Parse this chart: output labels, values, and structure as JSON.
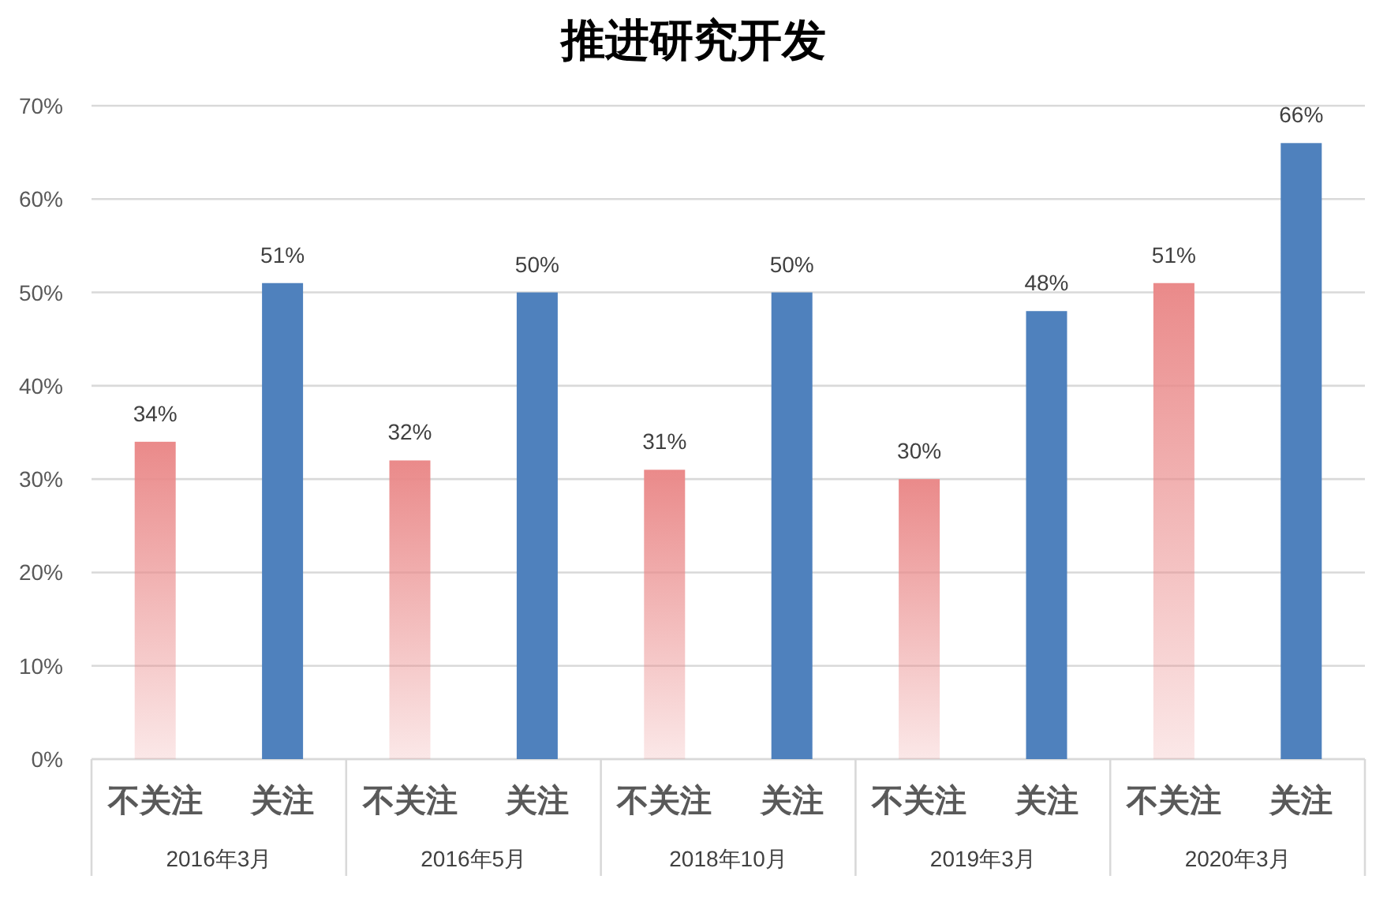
{
  "chart_data": {
    "type": "bar",
    "title": "推进研究开发",
    "categories": [
      "2016年3月",
      "2016年5月",
      "2018年10月",
      "2019年3月",
      "2020年3月"
    ],
    "series": [
      {
        "name": "不关注",
        "color": "#ea8a8a",
        "values": [
          34,
          32,
          31,
          30,
          51
        ],
        "value_labels": [
          "34%",
          "32%",
          "31%",
          "30%",
          "51%"
        ]
      },
      {
        "name": "关注",
        "color": "#4f81bd",
        "values": [
          51,
          50,
          50,
          48,
          66
        ],
        "value_labels": [
          "51%",
          "50%",
          "50%",
          "48%",
          "66%"
        ]
      }
    ],
    "ylim": [
      0,
      70
    ],
    "yticks": [
      {
        "value": 0,
        "label": "0%"
      },
      {
        "value": 10,
        "label": "10%"
      },
      {
        "value": 20,
        "label": "20%"
      },
      {
        "value": 30,
        "label": "30%"
      },
      {
        "value": 40,
        "label": "40%"
      },
      {
        "value": 50,
        "label": "50%"
      },
      {
        "value": 60,
        "label": "60%"
      },
      {
        "value": 70,
        "label": "70%"
      }
    ],
    "grid": "y"
  }
}
